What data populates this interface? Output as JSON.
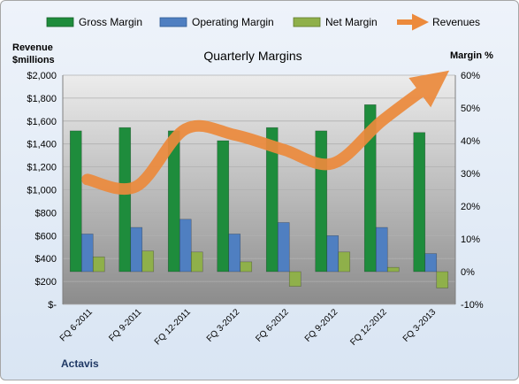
{
  "chart_data": {
    "type": "bar",
    "title": "Quarterly Margins",
    "company_label": "Actavis",
    "categories": [
      "FQ 6-2011",
      "FQ 9-2011",
      "FQ 12-2011",
      "FQ 3-2012",
      "FQ 6-2012",
      "FQ 9-2012",
      "FQ 12-2012",
      "FQ 3-2013"
    ],
    "y_left": {
      "label_line1": "Revenue",
      "label_line2": "$millions",
      "range": [
        0,
        2000
      ],
      "ticks": [
        "$-",
        "$200",
        "$400",
        "$600",
        "$800",
        "$1,000",
        "$1,200",
        "$1,400",
        "$1,600",
        "$1,800",
        "$2,000"
      ]
    },
    "y_right": {
      "label": "Margin %",
      "range": [
        -10,
        60
      ],
      "ticks": [
        "-10%",
        "0%",
        "10%",
        "20%",
        "30%",
        "40%",
        "50%",
        "60%"
      ]
    },
    "series": [
      {
        "name": "Gross Margin",
        "kind": "bar",
        "axis": "right",
        "color": "#1e8c3c",
        "values": [
          43,
          44,
          43,
          40,
          44,
          43,
          51,
          42.5
        ]
      },
      {
        "name": "Operating Margin",
        "kind": "bar",
        "axis": "right",
        "color": "#4f7fc1",
        "values": [
          11.5,
          13.5,
          16,
          11.5,
          15,
          11,
          13.5,
          5.5
        ]
      },
      {
        "name": "Net Margin",
        "kind": "bar",
        "axis": "right",
        "color": "#8fb04a",
        "values": [
          4.5,
          6.3,
          6,
          3,
          -4.5,
          6,
          1.3,
          -5
        ]
      },
      {
        "name": "Revenues",
        "kind": "line",
        "axis": "left",
        "color": "#ec8a3c",
        "values": [
          1090,
          1030,
          1530,
          1480,
          1350,
          1230,
          1600,
          1920
        ]
      }
    ],
    "legend_position": "top",
    "grid": true
  }
}
